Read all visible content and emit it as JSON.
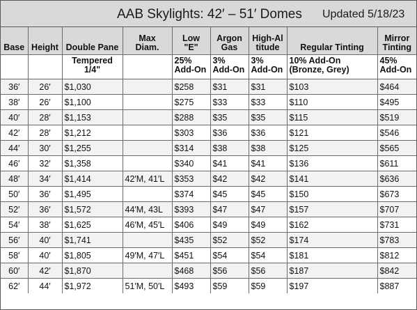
{
  "title": "AAB Skylights: 42′ – 51′ Domes",
  "updated": "Updated 5/18/23",
  "headers": {
    "base": "Base",
    "height": "Height",
    "double_pane": "Double Pane",
    "max_diam_1": "Max",
    "max_diam_2": "Diam.",
    "low_e_1": "Low",
    "low_e_2": "\"E\"",
    "argon_1": "Argon",
    "argon_2": "Gas",
    "high_alt_1": "High-Al",
    "high_alt_2": "titude",
    "regular_tinting": "Regular Tinting",
    "mirror_1": "Mirror",
    "mirror_2": "Tinting"
  },
  "subheaders": {
    "tempered_1": "Tempered",
    "tempered_2": "1/4\"",
    "low_e_1": "25%",
    "low_e_2": "Add-On",
    "argon_1": "3%",
    "argon_2": "Add-On",
    "high_alt_1": "3%",
    "high_alt_2": "Add-On",
    "regular_1": "10% Add-On",
    "regular_2": "(Bronze, Grey)",
    "mirror_1": "45%",
    "mirror_2": "Add-On"
  },
  "rows": [
    {
      "base": "36′",
      "height": "26′",
      "double_pane": "$1,030",
      "max_diam": "",
      "low_e": "$258",
      "argon": "$31",
      "high_alt": "$31",
      "regular": "$103",
      "mirror": "$464"
    },
    {
      "base": "38′",
      "height": "26′",
      "double_pane": "$1,100",
      "max_diam": "",
      "low_e": "$275",
      "argon": "$33",
      "high_alt": "$33",
      "regular": "$110",
      "mirror": "$495"
    },
    {
      "base": "40′",
      "height": "28′",
      "double_pane": "$1,153",
      "max_diam": "",
      "low_e": "$288",
      "argon": "$35",
      "high_alt": "$35",
      "regular": "$115",
      "mirror": "$519"
    },
    {
      "base": "42′",
      "height": "28′",
      "double_pane": "$1,212",
      "max_diam": "",
      "low_e": "$303",
      "argon": "$36",
      "high_alt": "$36",
      "regular": "$121",
      "mirror": "$546"
    },
    {
      "base": "44′",
      "height": "30′",
      "double_pane": "$1,255",
      "max_diam": "",
      "low_e": "$314",
      "argon": "$38",
      "high_alt": "$38",
      "regular": "$125",
      "mirror": "$565"
    },
    {
      "base": "46′",
      "height": "32′",
      "double_pane": "$1,358",
      "max_diam": "",
      "low_e": "$340",
      "argon": "$41",
      "high_alt": "$41",
      "regular": "$136",
      "mirror": "$611"
    },
    {
      "base": "48′",
      "height": "34′",
      "double_pane": "$1,414",
      "max_diam": "42′M, 41′L",
      "low_e": "$353",
      "argon": "$42",
      "high_alt": "$42",
      "regular": "$141",
      "mirror": "$636"
    },
    {
      "base": "50′",
      "height": "36′",
      "double_pane": "$1,495",
      "max_diam": "",
      "low_e": "$374",
      "argon": "$45",
      "high_alt": "$45",
      "regular": "$150",
      "mirror": "$673"
    },
    {
      "base": "52′",
      "height": "36′",
      "double_pane": "$1,572",
      "max_diam": "44′M, 43L",
      "low_e": "$393",
      "argon": "$47",
      "high_alt": "$47",
      "regular": "$157",
      "mirror": "$707"
    },
    {
      "base": "54′",
      "height": "38′",
      "double_pane": "$1,625",
      "max_diam": "46′M, 45′L",
      "low_e": "$406",
      "argon": "$49",
      "high_alt": "$49",
      "regular": "$162",
      "mirror": "$731"
    },
    {
      "base": "56′",
      "height": "40′",
      "double_pane": "$1,741",
      "max_diam": "",
      "low_e": "$435",
      "argon": "$52",
      "high_alt": "$52",
      "regular": "$174",
      "mirror": "$783"
    },
    {
      "base": "58′",
      "height": "40′",
      "double_pane": "$1,805",
      "max_diam": "49′M, 47′L",
      "low_e": "$451",
      "argon": "$54",
      "high_alt": "$54",
      "regular": "$181",
      "mirror": "$812"
    },
    {
      "base": "60′",
      "height": "42′",
      "double_pane": "$1,870",
      "max_diam": "",
      "low_e": "$468",
      "argon": "$56",
      "high_alt": "$56",
      "regular": "$187",
      "mirror": "$842"
    },
    {
      "base": "62′",
      "height": "44′",
      "double_pane": "$1,972",
      "max_diam": "51′M, 50′L",
      "low_e": "$493",
      "argon": "$59",
      "high_alt": "$59",
      "regular": "$197",
      "mirror": "$887"
    }
  ],
  "colors": {
    "header_bg": "#d9d9d9",
    "row_alt_bg": "#f2f2f2",
    "border": "#6b6b6b"
  }
}
